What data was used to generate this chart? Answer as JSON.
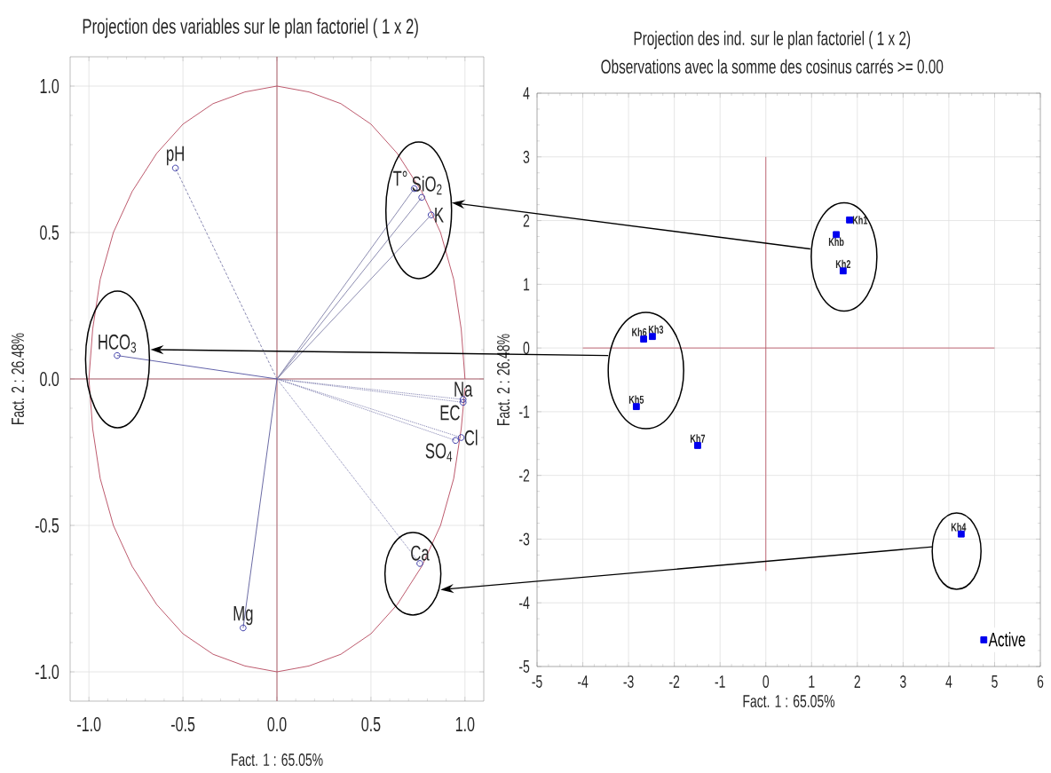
{
  "chart_data": [
    {
      "type": "scatter",
      "title": "Projection des variables sur le plan factoriel ( 1 x  2)",
      "xlabel": "Fact. 1 : 65.05%",
      "ylabel": "Fact. 2 : 26.48%",
      "xlim": [
        -1.1,
        1.1
      ],
      "ylim": [
        -1.1,
        1.1
      ],
      "grid": true,
      "xticks": [
        {
          "value": -1,
          "label": "-1.0"
        },
        -0.5,
        {
          "value": 0,
          "label": "0.0"
        },
        0.5,
        {
          "value": 1,
          "label": "1.0"
        }
      ],
      "yticks": [
        {
          "value": -1,
          "label": "-1.0"
        },
        -0.5,
        {
          "value": 0,
          "label": "0.0"
        },
        0.5,
        {
          "value": 1,
          "label": "1.0"
        }
      ],
      "series": [
        {
          "type": "line",
          "color": "#a8505e",
          "marker": "none",
          "line_style": "solid",
          "x": [
            -1.1,
            1.1
          ],
          "values": [
            0,
            0
          ]
        },
        {
          "type": "line",
          "color": "#a8505e",
          "marker": "none",
          "line_style": "solid",
          "x": [
            0,
            0
          ],
          "values": [
            -1.1,
            1.1
          ]
        },
        {
          "type": "line",
          "color": "#b5485d",
          "marker": "none",
          "line_style": "solid",
          "x": [
            1,
            0.98,
            0.94,
            0.87,
            0.77,
            0.64,
            0.5,
            0.34,
            0.17,
            0,
            -0.17,
            -0.34,
            -0.5,
            -0.64,
            -0.77,
            -0.87,
            -0.94,
            -0.98,
            -1,
            -0.98,
            -0.94,
            -0.87,
            -0.77,
            -0.64,
            -0.5,
            -0.34,
            -0.17,
            0,
            0.17,
            0.34,
            0.5,
            0.64,
            0.77,
            0.87,
            0.94,
            0.98,
            1
          ],
          "values": [
            0,
            0.17,
            0.34,
            0.5,
            0.64,
            0.77,
            0.87,
            0.94,
            0.98,
            1,
            0.98,
            0.94,
            0.87,
            0.77,
            0.64,
            0.5,
            0.34,
            0.17,
            0,
            -0.17,
            -0.34,
            -0.5,
            -0.64,
            -0.77,
            -0.87,
            -0.94,
            -0.98,
            -1,
            -0.98,
            -0.94,
            -0.87,
            -0.77,
            -0.64,
            -0.5,
            -0.34,
            -0.17,
            -0.03
          ]
        },
        {
          "type": "line",
          "color": "#7a7aa8",
          "marker": "none",
          "line_style": "dashed",
          "x": [
            0,
            -0.54
          ],
          "values": [
            0,
            0.72
          ]
        },
        {
          "type": "line",
          "color": "#8080a8",
          "marker": "none",
          "line_style": "solid",
          "x": [
            0,
            0.73
          ],
          "values": [
            0,
            0.65
          ]
        },
        {
          "type": "line",
          "color": "#8080a8",
          "marker": "none",
          "line_style": "solid",
          "x": [
            0,
            0.77
          ],
          "values": [
            0,
            0.62
          ]
        },
        {
          "type": "line",
          "color": "#8080a8",
          "marker": "none",
          "line_style": "solid",
          "x": [
            0,
            0.82
          ],
          "values": [
            0,
            0.56
          ]
        },
        {
          "type": "line",
          "color": "#5050a0",
          "marker": "none",
          "line_style": "solid",
          "x": [
            0,
            -0.85
          ],
          "values": [
            0,
            0.08
          ]
        },
        {
          "type": "line",
          "color": "#6b6ba3",
          "marker": "none",
          "line_style": "dotted",
          "x": [
            0,
            0.99
          ],
          "values": [
            0,
            -0.07
          ]
        },
        {
          "type": "line",
          "color": "#6b6ba3",
          "marker": "none",
          "line_style": "dotted",
          "x": [
            0,
            0.99
          ],
          "values": [
            0,
            -0.08
          ]
        },
        {
          "type": "line",
          "color": "#6b6ba3",
          "marker": "none",
          "line_style": "dotted",
          "x": [
            0,
            0.98
          ],
          "values": [
            0,
            -0.2
          ]
        },
        {
          "type": "line",
          "color": "#6b6ba3",
          "marker": "none",
          "line_style": "dotted",
          "x": [
            0,
            0.95
          ],
          "values": [
            0,
            -0.21
          ]
        },
        {
          "type": "line",
          "color": "#6b6ba3",
          "marker": "none",
          "line_style": "dotted",
          "x": [
            0,
            0.76
          ],
          "values": [
            0,
            -0.63
          ]
        },
        {
          "type": "line",
          "color": "#5a5a9a",
          "marker": "none",
          "line_style": "solid",
          "x": [
            0,
            -0.18
          ],
          "values": [
            0,
            -0.85
          ]
        },
        {
          "type": "scatter",
          "color": "#3c3ca8",
          "marker": "circle",
          "x": [
            -0.54,
            0.73,
            0.77,
            0.82,
            -0.85,
            0.99,
            0.99,
            0.98,
            0.95,
            0.76,
            -0.18
          ],
          "values": [
            0.72,
            0.65,
            0.62,
            0.56,
            0.08,
            -0.07,
            -0.08,
            -0.2,
            -0.21,
            -0.63,
            -0.85
          ]
        }
      ],
      "annotations": [
        {
          "text": "pH",
          "x": -0.54,
          "y": 0.72
        },
        {
          "text": "T°",
          "x": 0.73,
          "y": 0.65
        },
        {
          "text": "SiO$_{2}$",
          "x": 0.77,
          "y": 0.62
        },
        {
          "text": "K",
          "x": 0.82,
          "y": 0.56
        },
        {
          "text": "HCO$_{3}$",
          "x": -0.85,
          "y": 0.08
        },
        {
          "text": "Na",
          "x": 0.99,
          "y": -0.07
        },
        {
          "text": "EC",
          "x": 0.99,
          "y": -0.08
        },
        {
          "text": "Cl",
          "x": 0.98,
          "y": -0.2
        },
        {
          "text": "SO$_{4}$",
          "x": 0.95,
          "y": -0.21
        },
        {
          "text": "Ca",
          "x": 0.76,
          "y": -0.63
        },
        {
          "text": "Mg",
          "x": -0.18,
          "y": -0.85
        }
      ]
    },
    {
      "type": "scatter",
      "title": "Projection des ind. sur le plan factoriel ( 1 x  2)",
      "subtitle": "Observations avec la somme des cosinus carrés >=  0.00",
      "xlabel": "Fact. 1 : 65.05%",
      "ylabel": "Fact. 2 : 26.48%",
      "xlim": [
        -5,
        6
      ],
      "ylim": [
        -5,
        4
      ],
      "xticks": [
        -5,
        -4,
        -3,
        -2,
        -1,
        0,
        1,
        2,
        3,
        4,
        5,
        6
      ],
      "yticks": [
        -5,
        -4,
        -3,
        -2,
        -1,
        0,
        1,
        2,
        3,
        4
      ],
      "grid": true,
      "legend": "bottom right",
      "marker": "square",
      "series": [
        {
          "type": "line",
          "color": "#c0606e",
          "marker": "none",
          "line_style": "solid",
          "x": [
            -4,
            5
          ],
          "values": [
            0,
            0
          ]
        },
        {
          "type": "line",
          "color": "#c0606e",
          "marker": "none",
          "line_style": "solid",
          "x": [
            0,
            0
          ],
          "values": [
            -3.5,
            3
          ]
        },
        {
          "name": "Active",
          "color": "#0000ee",
          "x": [
            1.83,
            1.54,
            1.69,
            -2.67,
            -2.48,
            -2.83,
            -1.49,
            4.27
          ],
          "values": [
            2.01,
            1.78,
            1.21,
            0.14,
            0.18,
            -0.92,
            -1.53,
            -2.92
          ]
        }
      ],
      "annotations": [
        {
          "text": "Kh1",
          "x": 1.83,
          "y": 2.01
        },
        {
          "text": "Khb",
          "x": 1.54,
          "y": 1.78
        },
        {
          "text": "Kh2",
          "x": 1.69,
          "y": 1.21
        },
        {
          "text": "Kh6",
          "x": -2.67,
          "y": 0.14
        },
        {
          "text": "Kh3",
          "x": -2.48,
          "y": 0.18
        },
        {
          "text": "Kh5",
          "x": -2.83,
          "y": -0.92
        },
        {
          "text": "Kh7",
          "x": -1.49,
          "y": -1.53
        },
        {
          "text": "Kh4",
          "x": 4.27,
          "y": -2.92
        }
      ]
    }
  ]
}
